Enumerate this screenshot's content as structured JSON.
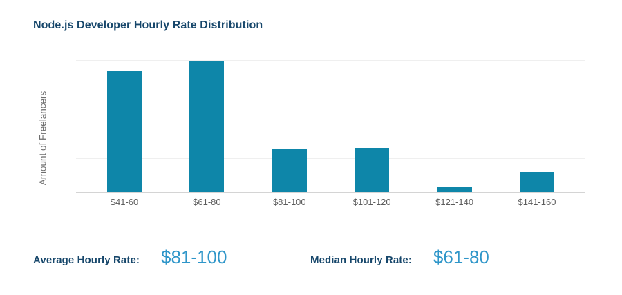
{
  "title": "Node.js Developer Hourly Rate Distribution",
  "chart_data": {
    "type": "bar",
    "title": "Node.js Developer Hourly Rate Distribution",
    "categories": [
      "$41-60",
      "$61-80",
      "$81-100",
      "$101-120",
      "$121-140",
      "$141-160"
    ],
    "values": [
      92,
      100,
      32.5,
      33.5,
      4,
      15.5
    ],
    "xlabel": "",
    "ylabel": "Amount of Freelancers",
    "ylim": [
      0,
      104
    ],
    "gridline_values": [
      25,
      50,
      75,
      100
    ],
    "y_tick_labels_visible": false,
    "legend": "none",
    "bar_color": "#0e86a9"
  },
  "stats": {
    "average": {
      "label": "Average Hourly Rate:",
      "value": "$81-100"
    },
    "median": {
      "label": "Median Hourly Rate:",
      "value": "$61-80"
    }
  },
  "colors": {
    "bar": "#0e86a9",
    "heading": "#17476b",
    "stat_value": "#2f96c9",
    "axis_text": "#6e6e6e",
    "tick_text": "#5c5c5c",
    "gridline": "#efefef",
    "baseline": "#d4d4d4"
  }
}
